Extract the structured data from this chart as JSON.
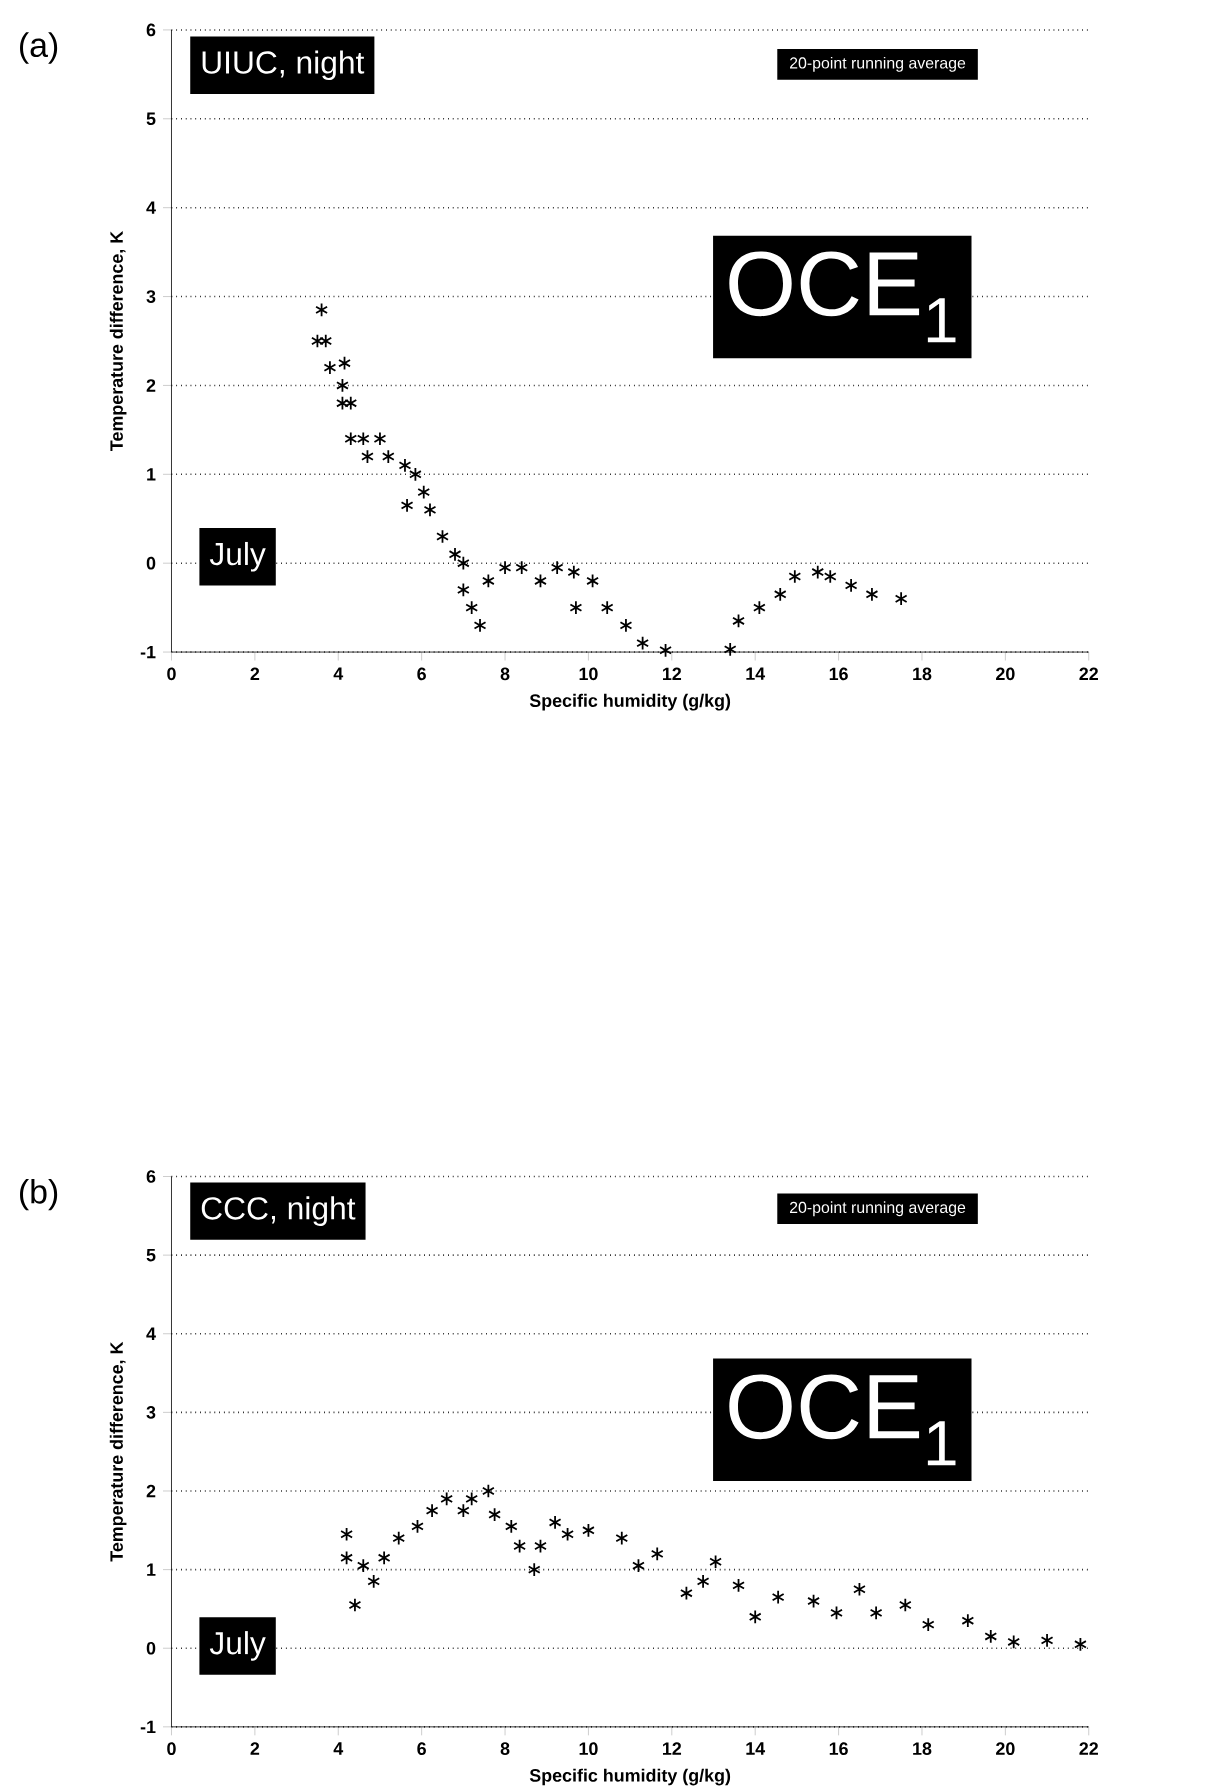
{
  "chart_data": [
    {
      "type": "scatter",
      "xlabel": "Specific humidity (g/kg)",
      "ylabel": "Temperature difference, K",
      "annotations": [
        "(a)",
        "UIUC, night",
        "20-point running average",
        "OCE$_{1}$",
        "July"
      ],
      "xlim": [
        0,
        22
      ],
      "xticks": [
        0,
        2,
        4,
        6,
        8,
        10,
        12,
        14,
        16,
        18,
        20,
        22
      ],
      "ylim": [
        -1,
        6
      ],
      "yticks": [
        -1,
        0,
        1,
        2,
        3,
        4,
        5,
        6
      ],
      "grid": "y",
      "marker": "cross",
      "series": [
        {
          "color": "#000000",
          "x": [
            3.5,
            3.6,
            3.7,
            3.8,
            4.1,
            4.1,
            4.15,
            4.3,
            4.3,
            4.6,
            4.7,
            5.0,
            5.2,
            5.6,
            5.65,
            5.85,
            6.05,
            6.2,
            6.5,
            6.8,
            7.0,
            7.0,
            7.2,
            7.4,
            7.6,
            8.0,
            8.4,
            8.85,
            9.25,
            9.65,
            9.7,
            10.1,
            10.45,
            10.9,
            11.3,
            11.85,
            13.4,
            13.6,
            14.1,
            14.6,
            14.95,
            15.5,
            15.8,
            16.3,
            16.8,
            17.5
          ],
          "values": [
            2.5,
            2.85,
            2.5,
            2.2,
            2.0,
            1.8,
            2.25,
            1.8,
            1.4,
            1.4,
            1.2,
            1.4,
            1.2,
            1.1,
            0.65,
            1.0,
            0.8,
            0.6,
            0.3,
            0.1,
            0,
            -0.3,
            -0.5,
            -0.7,
            -0.2,
            -0.05,
            -0.05,
            -0.2,
            -0.05,
            -0.1,
            -0.5,
            -0.2,
            -0.5,
            -0.7,
            -0.9,
            -0.98,
            -0.97,
            -0.65,
            -0.5,
            -0.35,
            -0.15,
            -0.1,
            -0.15,
            -0.25,
            -0.35,
            -0.4
          ]
        }
      ]
    },
    {
      "type": "scatter",
      "xlabel": "Specific humidity (g/kg)",
      "ylabel": "Temperature difference, K",
      "annotations": [
        "(b)",
        "CCC, night",
        "20-point running average",
        "OCE$_{1}$",
        "July"
      ],
      "xlim": [
        0,
        22
      ],
      "xticks": [
        0,
        2,
        4,
        6,
        8,
        10,
        12,
        14,
        16,
        18,
        20,
        22
      ],
      "ylim": [
        -1,
        6
      ],
      "yticks": [
        -1,
        0,
        1,
        2,
        3,
        4,
        5,
        6
      ],
      "grid": "y",
      "marker": "cross",
      "series": [
        {
          "color": "#000000",
          "x": [
            4.2,
            4.2,
            4.4,
            4.6,
            4.85,
            5.1,
            5.45,
            5.9,
            6.25,
            6.6,
            7.0,
            7.2,
            7.6,
            7.75,
            8.15,
            8.35,
            8.7,
            8.85,
            9.2,
            9.5,
            10.0,
            10.8,
            11.2,
            11.65,
            12.35,
            12.75,
            13.05,
            13.6,
            14.0,
            14.55,
            15.4,
            15.95,
            16.5,
            16.9,
            17.6,
            18.15,
            19.1,
            19.65,
            20.2,
            21.0,
            21.8
          ],
          "values": [
            1.45,
            1.15,
            0.55,
            1.05,
            0.85,
            1.15,
            1.4,
            1.55,
            1.75,
            1.9,
            1.75,
            1.9,
            2.0,
            1.7,
            1.55,
            1.3,
            1.0,
            1.3,
            1.6,
            1.45,
            1.5,
            1.4,
            1.05,
            1.2,
            0.7,
            0.85,
            1.1,
            0.8,
            0.4,
            0.65,
            0.6,
            0.45,
            0.75,
            0.45,
            0.55,
            0.3,
            0.35,
            0.15,
            0.08,
            0.1,
            0.05
          ]
        }
      ]
    }
  ]
}
